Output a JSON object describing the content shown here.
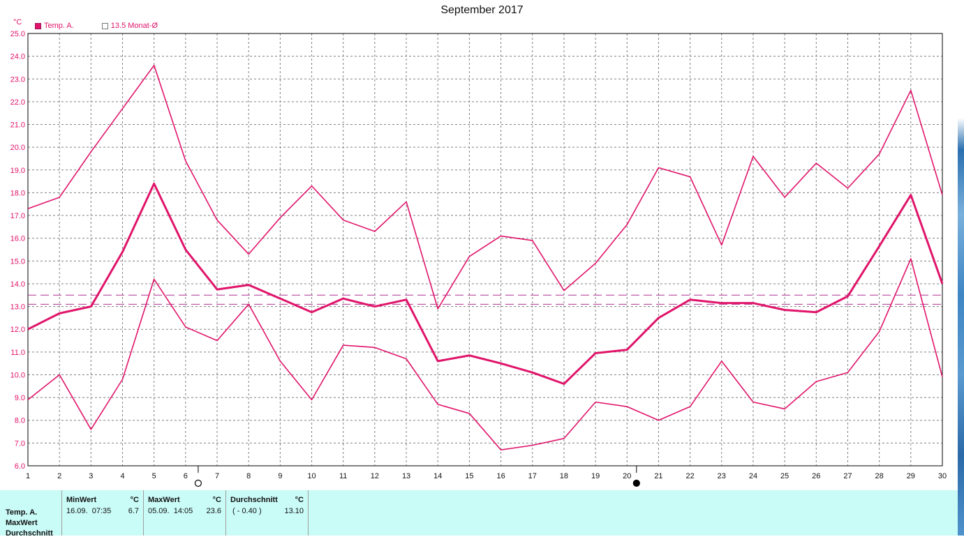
{
  "title": "September 2017",
  "unit_label": "°C",
  "legend": {
    "series_label": "Temp. A.",
    "average_label": "13.5 Monat-Ø"
  },
  "colors": {
    "series": "#e0146a",
    "average_line": "#b03090",
    "grid": "#808080",
    "panel_bg": "#c9fbf7"
  },
  "chart_data": {
    "type": "line",
    "title": "September 2017",
    "ylabel": "°C",
    "x": [
      1,
      2,
      3,
      4,
      5,
      6,
      7,
      8,
      9,
      10,
      11,
      12,
      13,
      14,
      15,
      16,
      17,
      18,
      19,
      20,
      21,
      22,
      23,
      24,
      25,
      26,
      27,
      28,
      29,
      30
    ],
    "xlim": [
      1,
      30
    ],
    "ylim": [
      6.0,
      25.0
    ],
    "yticks": [
      6.0,
      7.0,
      8.0,
      9.0,
      10.0,
      11.0,
      12.0,
      13.0,
      14.0,
      15.0,
      16.0,
      17.0,
      18.0,
      19.0,
      20.0,
      21.0,
      22.0,
      23.0,
      24.0,
      25.0
    ],
    "grid": true,
    "series": [
      {
        "name": "Temp. A.",
        "role": "max",
        "values": [
          17.3,
          17.8,
          19.8,
          21.7,
          23.6,
          19.4,
          16.8,
          15.3,
          16.9,
          18.3,
          16.8,
          16.3,
          17.6,
          12.9,
          15.2,
          16.1,
          15.9,
          13.7,
          14.9,
          16.6,
          19.1,
          18.7,
          15.7,
          19.6,
          17.8,
          19.3,
          18.2,
          19.7,
          22.5,
          17.9
        ]
      },
      {
        "name": "Temp. A.",
        "role": "avg",
        "values": [
          12.0,
          12.7,
          13.0,
          15.4,
          18.4,
          15.5,
          13.75,
          13.95,
          13.35,
          12.75,
          13.35,
          13.0,
          13.3,
          10.6,
          10.85,
          10.5,
          10.1,
          9.6,
          10.95,
          11.1,
          12.5,
          13.3,
          13.15,
          13.15,
          12.85,
          12.75,
          13.45,
          15.65,
          17.9,
          14.0
        ]
      },
      {
        "name": "Temp. A.",
        "role": "min",
        "values": [
          8.9,
          10.0,
          7.6,
          9.8,
          14.2,
          12.1,
          11.5,
          13.1,
          10.6,
          8.9,
          11.3,
          11.2,
          10.7,
          8.7,
          8.3,
          6.7,
          6.9,
          7.2,
          8.8,
          8.6,
          8.0,
          8.6,
          10.6,
          8.8,
          8.5,
          9.7,
          10.1,
          11.9,
          15.1,
          9.9
        ]
      }
    ],
    "reference_lines": [
      {
        "label": "13.5 Monat-Ø",
        "value": 13.5
      },
      {
        "value": 13.1
      }
    ],
    "moon_markers": [
      {
        "x": 6.4,
        "phase": "full"
      },
      {
        "x": 20.3,
        "phase": "new"
      }
    ]
  },
  "stats": {
    "rows": [
      "Temp. A.",
      "MaxWert",
      "Durchschnitt"
    ],
    "blocks": [
      {
        "header": "MinWert",
        "unit": "°C",
        "left": "16.09.  07:35",
        "right": "6.7"
      },
      {
        "header": "MaxWert",
        "unit": "°C",
        "left": "05.09.  14:05",
        "right": "23.6"
      },
      {
        "header": "Durchschnitt",
        "unit": "°C",
        "left": " ( - 0.40 )",
        "right": "13.10"
      }
    ]
  }
}
